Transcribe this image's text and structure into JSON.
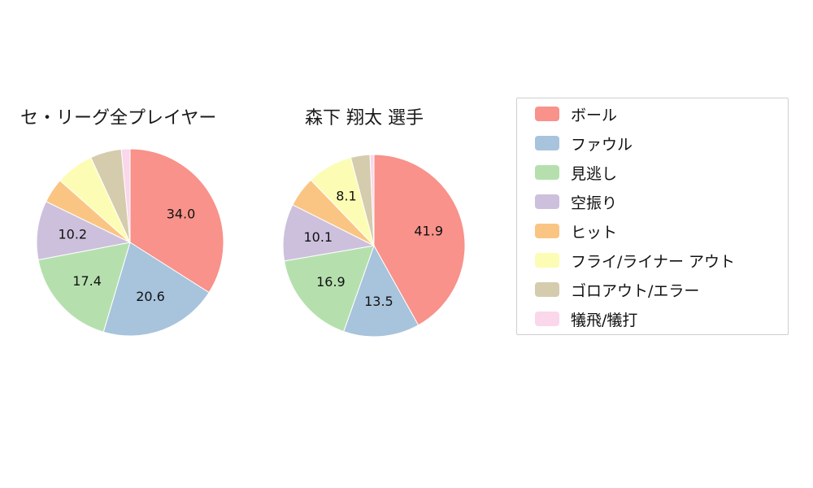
{
  "titles": {
    "left": "セ・リーグ全プレイヤー",
    "right": "森下 翔太  選手"
  },
  "legend": {
    "items": [
      {
        "label": "ボール",
        "color": "#F8928A"
      },
      {
        "label": "ファウル",
        "color": "#A8C3DC"
      },
      {
        "label": "見逃し",
        "color": "#B5E0AE"
      },
      {
        "label": "空振り",
        "color": "#CDC0DD"
      },
      {
        "label": "ヒット",
        "color": "#FAC583"
      },
      {
        "label": "フライ/ライナー アウト",
        "color": "#FCFCB4"
      },
      {
        "label": "ゴロアウト/エラー",
        "color": "#D5CCAE"
      },
      {
        "label": "犠飛/犠打",
        "color": "#FAD7EA"
      }
    ]
  },
  "chart_data": [
    {
      "type": "pie",
      "title": "セ・リーグ全プレイヤー",
      "direction": "clockwise",
      "start_angle": "top",
      "radius": 115,
      "label_min_pct": 8,
      "slices": [
        {
          "label": "ボール",
          "value": 34.0,
          "color": "#F8928A"
        },
        {
          "label": "ファウル",
          "value": 20.6,
          "color": "#A8C3DC"
        },
        {
          "label": "見逃し",
          "value": 17.4,
          "color": "#B5E0AE"
        },
        {
          "label": "空振り",
          "value": 10.2,
          "color": "#CDC0DD"
        },
        {
          "label": "ヒット",
          "value": 4.3,
          "color": "#FAC583"
        },
        {
          "label": "フライ/ライナー アウト",
          "value": 6.6,
          "color": "#FCFCB4"
        },
        {
          "label": "ゴロアウト/エラー",
          "value": 5.4,
          "color": "#D5CCAE"
        },
        {
          "label": "犠飛/犠打",
          "value": 1.5,
          "color": "#FAD7EA"
        }
      ]
    },
    {
      "type": "pie",
      "title": "森下 翔太  選手",
      "direction": "clockwise",
      "start_angle": "top",
      "radius": 112,
      "label_min_pct": 8,
      "slices": [
        {
          "label": "ボール",
          "value": 41.9,
          "color": "#F8928A"
        },
        {
          "label": "ファウル",
          "value": 13.5,
          "color": "#A8C3DC"
        },
        {
          "label": "見逃し",
          "value": 16.9,
          "color": "#B5E0AE"
        },
        {
          "label": "空振り",
          "value": 10.1,
          "color": "#CDC0DD"
        },
        {
          "label": "ヒット",
          "value": 5.4,
          "color": "#FAC583"
        },
        {
          "label": "フライ/ライナー アウト",
          "value": 8.1,
          "color": "#FCFCB4"
        },
        {
          "label": "ゴロアウト/エラー",
          "value": 3.4,
          "color": "#D5CCAE"
        },
        {
          "label": "犠飛/犠打",
          "value": 0.7,
          "color": "#FAD7EA"
        }
      ]
    }
  ]
}
